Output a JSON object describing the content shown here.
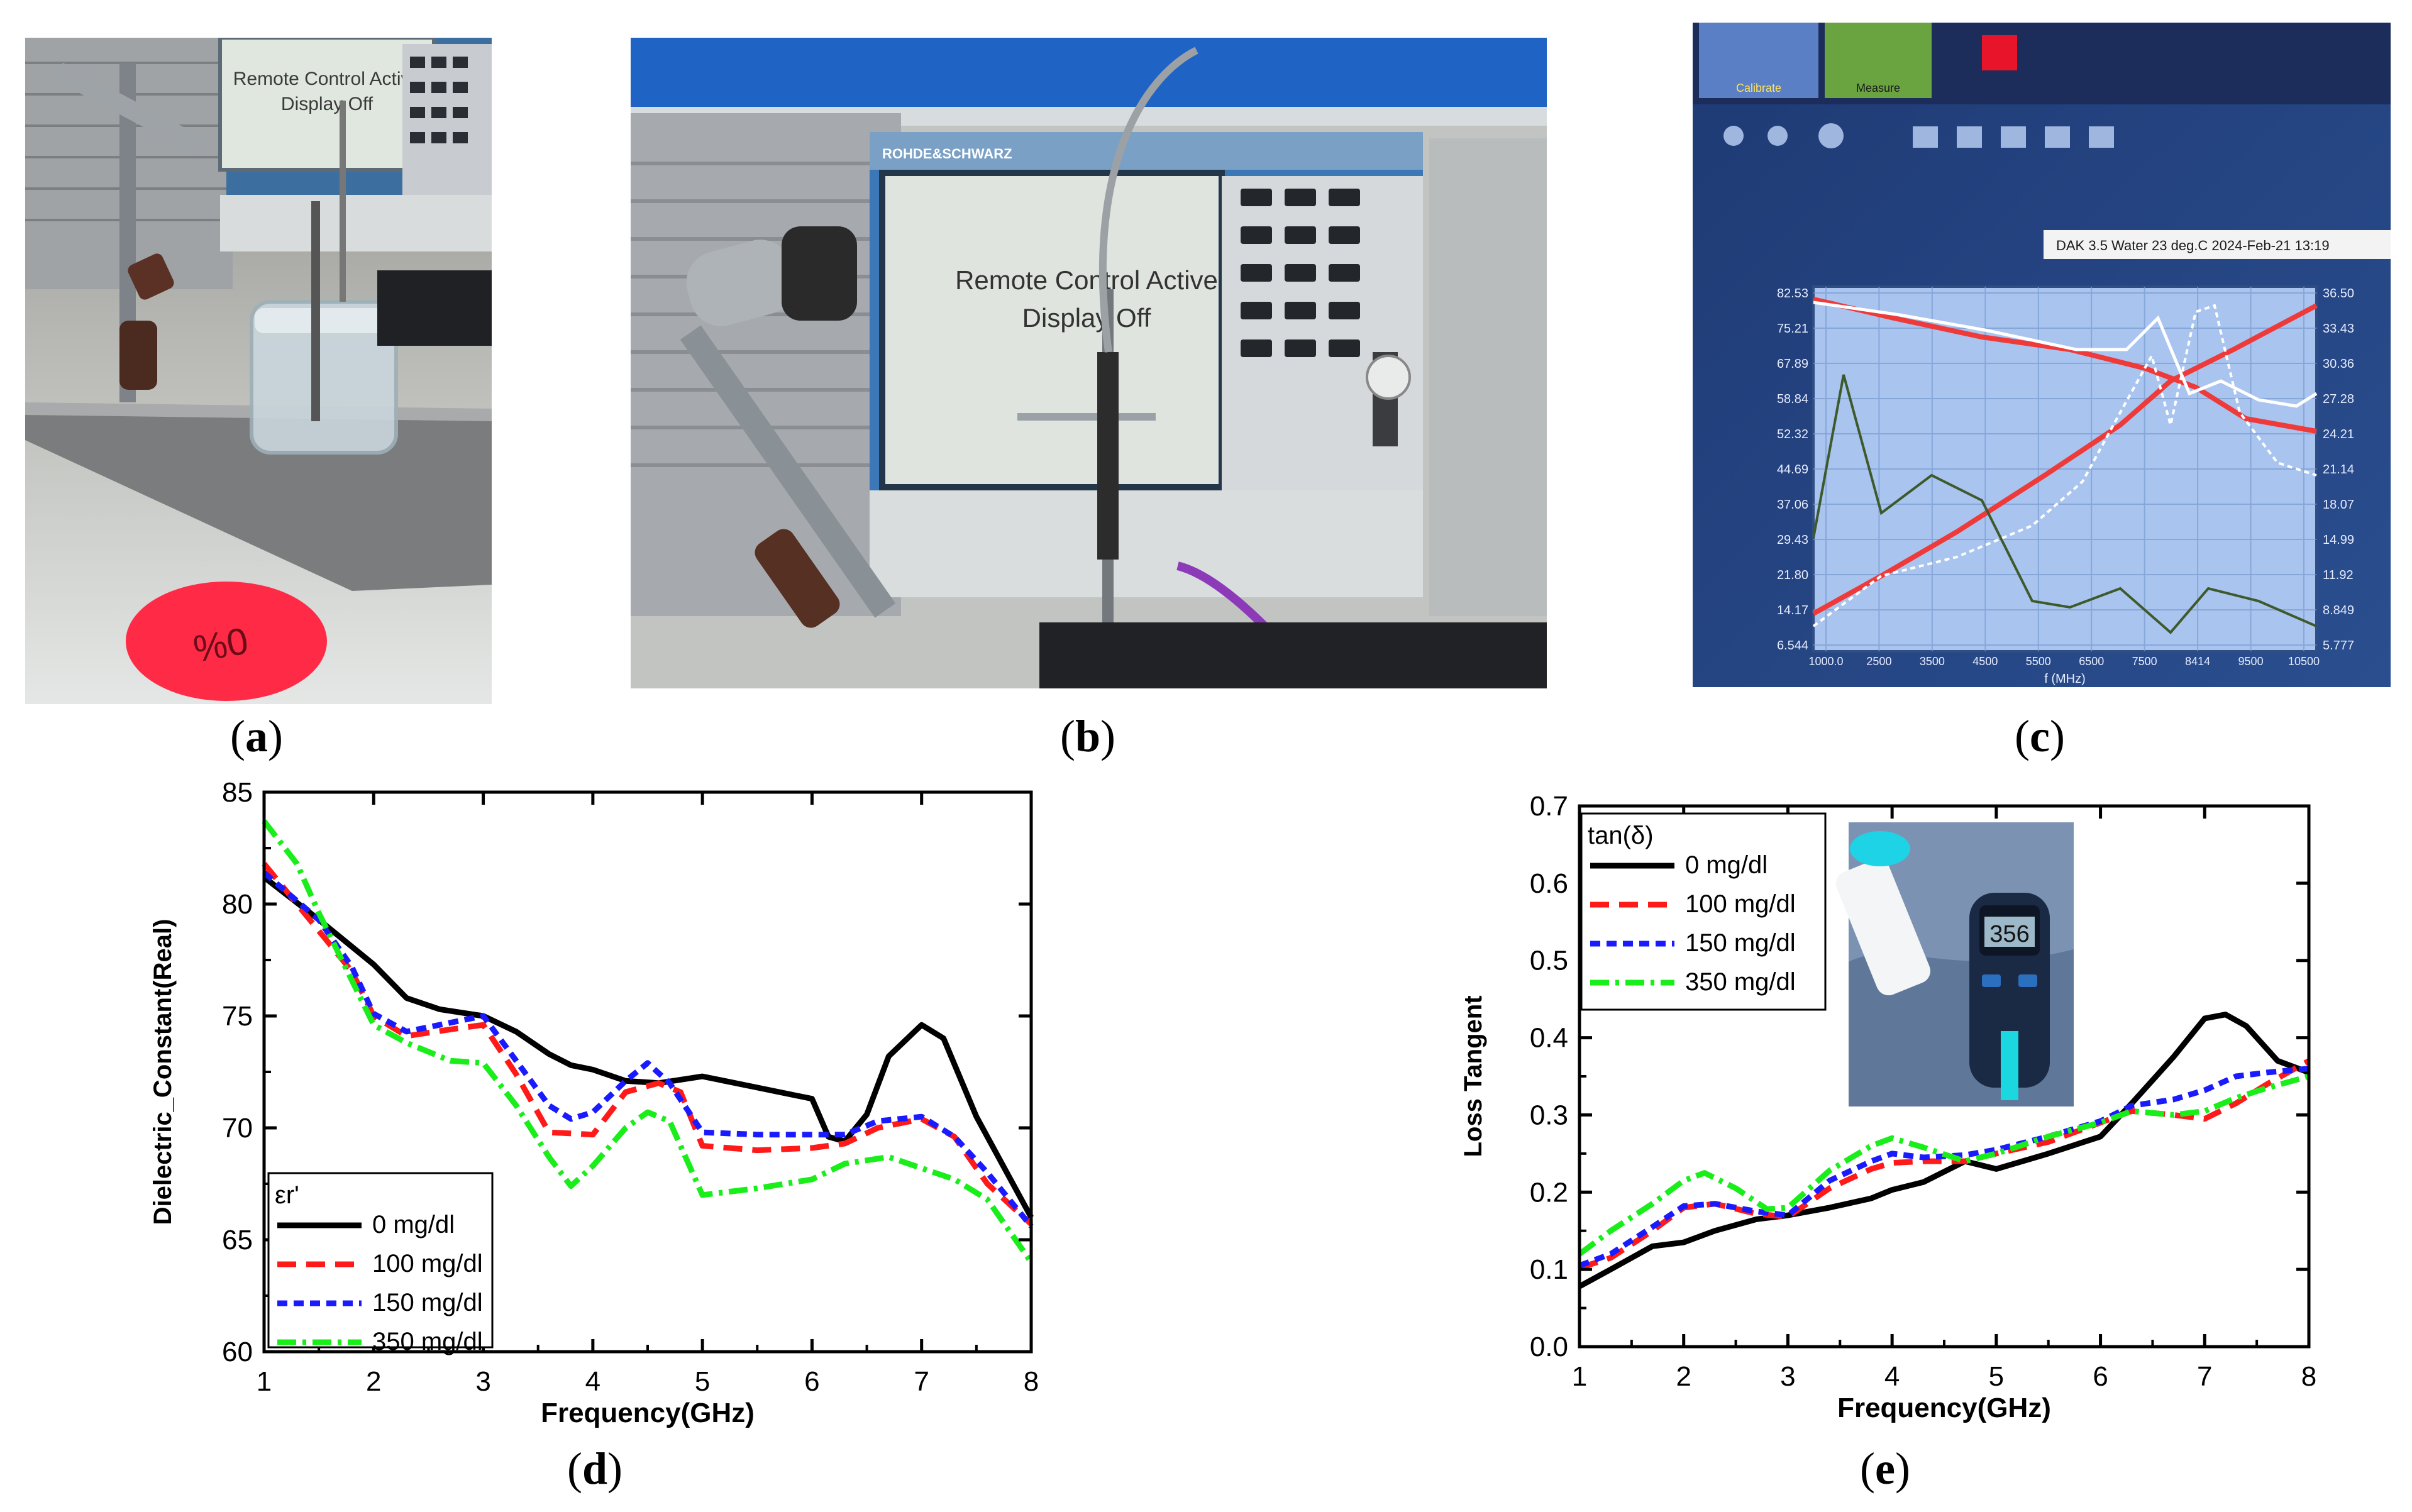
{
  "panels": {
    "a": {
      "label": "a"
    },
    "b": {
      "label": "b"
    },
    "c": {
      "label": "c"
    },
    "d": {
      "label": "d"
    },
    "e": {
      "label": "e"
    }
  },
  "photo_a": {
    "screen_text_line1": "Remote Control Active",
    "screen_text_line2": "Display Off",
    "lid_text": "0%"
  },
  "photo_b": {
    "brand": "ROHDE&SCHWARZ",
    "screen_text_line1": "Remote Control Active",
    "screen_text_line2": "Display Off"
  },
  "photo_c": {
    "calibrate": "Calibrate",
    "measure": "Measure",
    "banner": "DAK 3.5 Water 23 deg.C 2024-Feb-21 13:19",
    "left_ticks": [
      "82.53",
      "75.21",
      "67.89",
      "58.84",
      "52.32",
      "44.69",
      "37.06",
      "29.43",
      "21.80",
      "14.17",
      "6.544"
    ],
    "right_ticks": [
      "36.50",
      "33.43",
      "30.36",
      "27.28",
      "24.21",
      "21.14",
      "18.07",
      "14.99",
      "11.92",
      "8.849",
      "5.777"
    ],
    "x_ticks": [
      "1000.0",
      "2500",
      "3500",
      "4500",
      "5500",
      "6500",
      "7500",
      "8414",
      "9500",
      "10500"
    ],
    "x_label": "f (MHz)"
  },
  "chart_data": [
    {
      "type": "line",
      "title": "",
      "xlabel": "Frequency(GHz)",
      "ylabel": "Dielectric_Constant(Real)",
      "xlim": [
        1,
        8
      ],
      "ylim": [
        60,
        85
      ],
      "xticks": [
        1,
        2,
        3,
        4,
        5,
        6,
        7,
        8
      ],
      "yticks": [
        60,
        65,
        70,
        75,
        80,
        85
      ],
      "legend_title": "εr'",
      "legend_position": "bottom-left",
      "series": [
        {
          "name": "0 mg/dl",
          "color": "#000000",
          "dash": "",
          "x": [
            1,
            1.5,
            2,
            2.3,
            2.6,
            3,
            3.3,
            3.6,
            3.8,
            4,
            4.3,
            4.6,
            5,
            5.5,
            6,
            6.15,
            6.3,
            6.5,
            6.7,
            7,
            7.2,
            7.5,
            8
          ],
          "y": [
            81.2,
            79.3,
            77.3,
            75.8,
            75.3,
            75.0,
            74.3,
            73.3,
            72.8,
            72.6,
            72.1,
            72.0,
            72.3,
            71.8,
            71.3,
            69.6,
            69.4,
            70.6,
            73.2,
            74.6,
            74.0,
            70.5,
            66.0
          ]
        },
        {
          "name": "100 mg/dl",
          "color": "#ff1a1a",
          "dash": "30 16",
          "x": [
            1,
            1.5,
            1.8,
            2,
            2.3,
            2.7,
            3,
            3.3,
            3.6,
            4,
            4.3,
            4.6,
            4.8,
            5,
            5.5,
            6,
            6.3,
            6.6,
            7,
            7.3,
            7.6,
            8
          ],
          "y": [
            81.8,
            78.8,
            77.0,
            75.0,
            74.1,
            74.4,
            74.6,
            72.4,
            69.8,
            69.7,
            71.6,
            72.0,
            71.6,
            69.2,
            69.0,
            69.1,
            69.3,
            70.0,
            70.4,
            69.6,
            67.5,
            65.7
          ]
        },
        {
          "name": "150 mg/dl",
          "color": "#1a1aff",
          "dash": "16 10",
          "x": [
            1,
            1.5,
            1.8,
            2,
            2.3,
            2.7,
            3,
            3.3,
            3.6,
            3.8,
            4,
            4.3,
            4.5,
            4.7,
            5,
            5.5,
            6,
            6.3,
            6.6,
            7,
            7.3,
            7.6,
            8
          ],
          "y": [
            81.4,
            79.3,
            77.2,
            75.1,
            74.3,
            74.7,
            75.0,
            73.0,
            71.0,
            70.4,
            70.7,
            72.1,
            72.9,
            72.0,
            69.8,
            69.7,
            69.7,
            69.7,
            70.3,
            70.5,
            69.6,
            68.0,
            65.6
          ]
        },
        {
          "name": "350 mg/dl",
          "color": "#1aee1a",
          "dash": "30 10 6 10",
          "x": [
            1,
            1.3,
            1.5,
            1.8,
            2,
            2.3,
            2.7,
            3,
            3.3,
            3.6,
            3.8,
            4,
            4.3,
            4.5,
            4.7,
            5,
            5.5,
            6,
            6.3,
            6.7,
            7,
            7.3,
            7.6,
            8
          ],
          "y": [
            83.7,
            81.8,
            79.6,
            76.6,
            74.6,
            73.8,
            73.0,
            72.9,
            71.0,
            68.7,
            67.4,
            68.3,
            70.0,
            70.7,
            70.3,
            67.0,
            67.3,
            67.7,
            68.4,
            68.7,
            68.2,
            67.7,
            66.8,
            64.0
          ]
        }
      ]
    },
    {
      "type": "line",
      "title": "",
      "xlabel": "Frequency(GHz)",
      "ylabel": "Loss Tangent",
      "xlim": [
        1,
        8
      ],
      "ylim": [
        0.0,
        0.7
      ],
      "xticks": [
        1,
        2,
        3,
        4,
        5,
        6,
        7,
        8
      ],
      "yticks": [
        0.0,
        0.1,
        0.2,
        0.3,
        0.4,
        0.5,
        0.6,
        0.7
      ],
      "ytick_labels": [
        "0.0",
        "0.1",
        "0.2",
        "0.3",
        "0.4",
        "0.5",
        "0.6",
        "0.7"
      ],
      "legend_title": "tan(δ)",
      "legend_position": "top-left",
      "inset_meter_reading": "356",
      "series": [
        {
          "name": "0 mg/dl",
          "color": "#000000",
          "dash": "",
          "x": [
            1,
            1.3,
            1.7,
            2,
            2.3,
            2.7,
            3,
            3.4,
            3.8,
            4,
            4.3,
            4.7,
            5,
            5.5,
            6,
            6.3,
            6.7,
            7,
            7.2,
            7.4,
            7.7,
            8
          ],
          "y": [
            0.078,
            0.1,
            0.13,
            0.135,
            0.15,
            0.165,
            0.17,
            0.18,
            0.192,
            0.203,
            0.213,
            0.24,
            0.23,
            0.25,
            0.272,
            0.315,
            0.375,
            0.425,
            0.43,
            0.415,
            0.37,
            0.355
          ]
        },
        {
          "name": "100 mg/dl",
          "color": "#ff1a1a",
          "dash": "30 16",
          "x": [
            1,
            1.3,
            1.7,
            2,
            2.3,
            2.7,
            3,
            3.4,
            3.8,
            4,
            4.3,
            4.7,
            5,
            5.5,
            6,
            6.3,
            6.7,
            7,
            7.3,
            7.6,
            8
          ],
          "y": [
            0.102,
            0.115,
            0.15,
            0.18,
            0.185,
            0.172,
            0.168,
            0.205,
            0.23,
            0.238,
            0.24,
            0.24,
            0.25,
            0.265,
            0.29,
            0.305,
            0.3,
            0.295,
            0.315,
            0.34,
            0.37
          ]
        },
        {
          "name": "150 mg/dl",
          "color": "#1a1aff",
          "dash": "16 10",
          "x": [
            1,
            1.3,
            1.7,
            2,
            2.3,
            2.7,
            3,
            3.4,
            3.8,
            4,
            4.3,
            4.7,
            5,
            5.5,
            6,
            6.3,
            6.7,
            7,
            7.3,
            7.6,
            8
          ],
          "y": [
            0.105,
            0.12,
            0.155,
            0.182,
            0.185,
            0.175,
            0.17,
            0.215,
            0.24,
            0.25,
            0.245,
            0.248,
            0.255,
            0.272,
            0.292,
            0.312,
            0.32,
            0.332,
            0.35,
            0.355,
            0.36
          ]
        },
        {
          "name": "350 mg/dl",
          "color": "#1aee1a",
          "dash": "30 10 6 10",
          "x": [
            1,
            1.3,
            1.7,
            2,
            2.2,
            2.5,
            2.8,
            3,
            3.4,
            3.8,
            4,
            4.3,
            4.7,
            5,
            5.5,
            6,
            6.3,
            6.7,
            7,
            7.3,
            7.6,
            8
          ],
          "y": [
            0.12,
            0.15,
            0.185,
            0.215,
            0.225,
            0.205,
            0.178,
            0.18,
            0.228,
            0.26,
            0.27,
            0.258,
            0.24,
            0.25,
            0.272,
            0.29,
            0.305,
            0.3,
            0.305,
            0.322,
            0.335,
            0.35
          ]
        }
      ]
    }
  ]
}
